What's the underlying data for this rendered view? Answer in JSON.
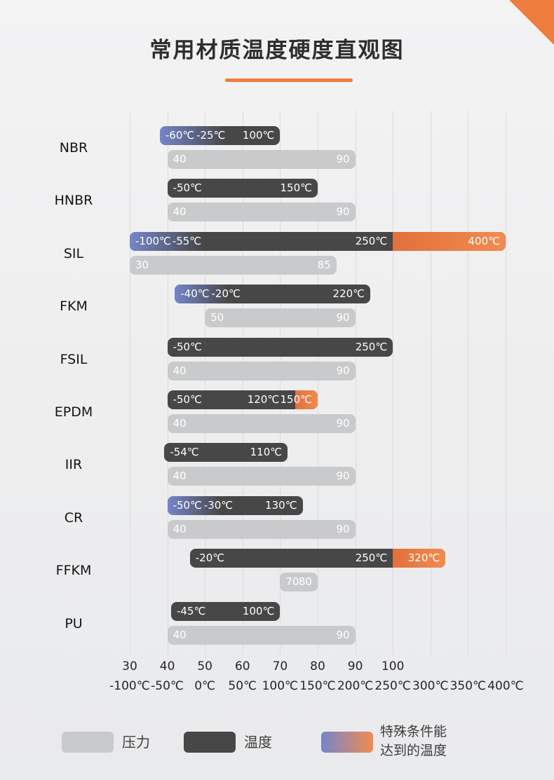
{
  "page": {
    "title": "常用材质温度硬度直观图"
  },
  "colors": {
    "accent": "#EF7D3E",
    "pressure_bar": "#C9CACC",
    "temperature_bar": "#474747",
    "special_low": "#7585CB",
    "special_high_start": "#E2703C",
    "special_high_end": "#F18B51"
  },
  "chart_data": {
    "type": "bar",
    "title": "常用材质温度硬度直观图",
    "temp_axis": {
      "min": -100,
      "max": 400,
      "step": 50,
      "unit": "℃",
      "tick_labels": [
        "-100℃",
        "-50℃",
        "0℃",
        "50℃",
        "100℃",
        "150℃",
        "200℃",
        "250℃",
        "300℃",
        "350℃",
        "400℃"
      ]
    },
    "hardness_axis": {
      "min": 30,
      "max": 100,
      "step": 10,
      "tick_labels": [
        "30",
        "40",
        "50",
        "60",
        "70",
        "80",
        "90",
        "100"
      ]
    },
    "materials": [
      {
        "name": "NBR",
        "temperature": {
          "segments": [
            {
              "from": -60,
              "to": -25,
              "type": "special_low"
            },
            {
              "from": -25,
              "to": 100,
              "type": "normal"
            }
          ],
          "labels": [
            {
              "text": "-60℃",
              "at": -60,
              "align": "left"
            },
            {
              "text": "-25℃",
              "at": -25,
              "align": "left"
            },
            {
              "text": "100℃",
              "at": 100,
              "align": "right"
            }
          ]
        },
        "pressure": {
          "from": 40,
          "to": 90
        }
      },
      {
        "name": "HNBR",
        "temperature": {
          "segments": [
            {
              "from": -50,
              "to": 150,
              "type": "normal"
            }
          ],
          "labels": [
            {
              "text": "-50℃",
              "at": -50,
              "align": "left"
            },
            {
              "text": "150℃",
              "at": 150,
              "align": "right"
            }
          ]
        },
        "pressure": {
          "from": 40,
          "to": 90
        }
      },
      {
        "name": "SIL",
        "temperature": {
          "segments": [
            {
              "from": -100,
              "to": -55,
              "type": "special_low"
            },
            {
              "from": -55,
              "to": 250,
              "type": "normal"
            },
            {
              "from": 250,
              "to": 400,
              "type": "special_high"
            }
          ],
          "labels": [
            {
              "text": "-100℃",
              "at": -100,
              "align": "left"
            },
            {
              "text": "-55℃",
              "at": -55,
              "align": "left"
            },
            {
              "text": "250℃",
              "at": 250,
              "align": "right"
            },
            {
              "text": "400℃",
              "at": 400,
              "align": "right"
            }
          ]
        },
        "pressure": {
          "from": 30,
          "to": 85
        }
      },
      {
        "name": "FKM",
        "temperature": {
          "segments": [
            {
              "from": -40,
              "to": -20,
              "type": "special_low"
            },
            {
              "from": -20,
              "to": 220,
              "type": "normal"
            }
          ],
          "labels": [
            {
              "text": "-40℃",
              "at": -40,
              "align": "left"
            },
            {
              "text": "-20℃",
              "at": -20,
              "align": "left"
            },
            {
              "text": "220℃",
              "at": 220,
              "align": "right"
            }
          ]
        },
        "pressure": {
          "from": 50,
          "to": 90
        }
      },
      {
        "name": "FSIL",
        "temperature": {
          "segments": [
            {
              "from": -50,
              "to": 250,
              "type": "normal"
            }
          ],
          "labels": [
            {
              "text": "-50℃",
              "at": -50,
              "align": "left"
            },
            {
              "text": "250℃",
              "at": 250,
              "align": "right"
            }
          ]
        },
        "pressure": {
          "from": 40,
          "to": 90
        }
      },
      {
        "name": "EPDM",
        "temperature": {
          "segments": [
            {
              "from": -50,
              "to": 120,
              "type": "normal"
            },
            {
              "from": 120,
              "to": 150,
              "type": "special_high"
            }
          ],
          "labels": [
            {
              "text": "-50℃",
              "at": -50,
              "align": "left"
            },
            {
              "text": "120℃",
              "at": 120,
              "align": "right"
            },
            {
              "text": "150℃",
              "at": 150,
              "align": "right"
            }
          ]
        },
        "pressure": {
          "from": 40,
          "to": 90
        }
      },
      {
        "name": "IIR",
        "temperature": {
          "segments": [
            {
              "from": -54,
              "to": 110,
              "type": "normal"
            }
          ],
          "labels": [
            {
              "text": "-54℃",
              "at": -54,
              "align": "left"
            },
            {
              "text": "110℃",
              "at": 110,
              "align": "right"
            }
          ]
        },
        "pressure": {
          "from": 40,
          "to": 90
        }
      },
      {
        "name": "CR",
        "temperature": {
          "segments": [
            {
              "from": -50,
              "to": -30,
              "type": "special_low"
            },
            {
              "from": -30,
              "to": 130,
              "type": "normal"
            }
          ],
          "labels": [
            {
              "text": "-50℃",
              "at": -50,
              "align": "left"
            },
            {
              "text": "-30℃",
              "at": -30,
              "align": "left"
            },
            {
              "text": "130℃",
              "at": 130,
              "align": "right"
            }
          ]
        },
        "pressure": {
          "from": 40,
          "to": 90
        }
      },
      {
        "name": "FFKM",
        "temperature": {
          "segments": [
            {
              "from": -20,
              "to": 250,
              "type": "normal"
            },
            {
              "from": 250,
              "to": 320,
              "type": "special_high"
            }
          ],
          "labels": [
            {
              "text": "-20℃",
              "at": -20,
              "align": "left"
            },
            {
              "text": "250℃",
              "at": 250,
              "align": "right"
            },
            {
              "text": "320℃",
              "at": 320,
              "align": "right"
            }
          ]
        },
        "pressure": {
          "from": 70,
          "to": 80
        }
      },
      {
        "name": "PU",
        "temperature": {
          "segments": [
            {
              "from": -45,
              "to": 100,
              "type": "normal"
            }
          ],
          "labels": [
            {
              "text": "-45℃",
              "at": -45,
              "align": "left"
            },
            {
              "text": "100℃",
              "at": 100,
              "align": "right"
            }
          ]
        },
        "pressure": {
          "from": 40,
          "to": 90
        }
      }
    ],
    "legend": [
      {
        "type": "pressure",
        "label": "压力"
      },
      {
        "type": "temperature",
        "label": "温度"
      },
      {
        "type": "special",
        "label": "特殊条件能\n达到的温度"
      }
    ]
  }
}
